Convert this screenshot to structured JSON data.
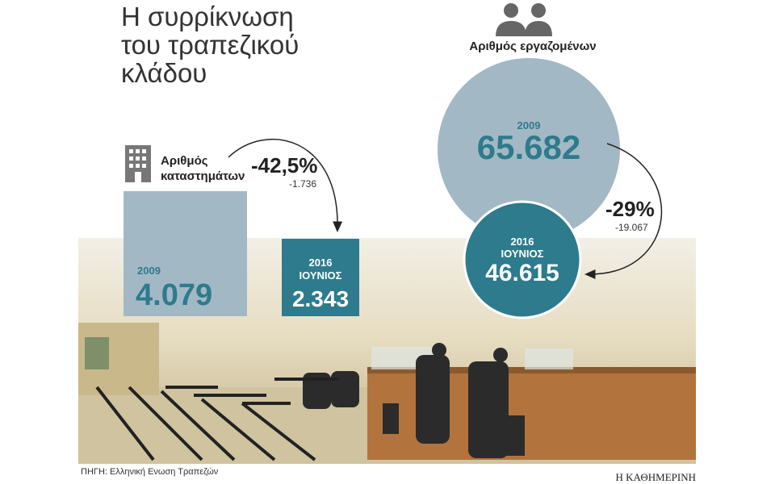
{
  "title": [
    "Η συρρίκνωση",
    "του τραπεζικού",
    "κλάδου"
  ],
  "branches": {
    "label": [
      "Αριθμός",
      "καταστημάτων"
    ],
    "change": "-42,5%",
    "difference": "-1.736",
    "before": {
      "period": [
        "2009"
      ],
      "value": "4.079"
    },
    "after": {
      "period": [
        "2016",
        "ΙΟΥΝΙΟΣ"
      ],
      "value": "2.343"
    }
  },
  "employees": {
    "label": "Αριθμός εργαζομένων",
    "change": "-29%",
    "difference": "-19.067",
    "before": {
      "period": [
        "2009"
      ],
      "value": "65.682"
    },
    "after": {
      "period": [
        "2016",
        "ΙΟΥΝΙΟΣ"
      ],
      "value": "46.615"
    }
  },
  "footer": {
    "source": "ΠΗΓΗ: Ελληνική Ενωση Τραπεζών",
    "brand": "Η ΚΑΘΗΜΕΡΙΝΗ"
  }
}
